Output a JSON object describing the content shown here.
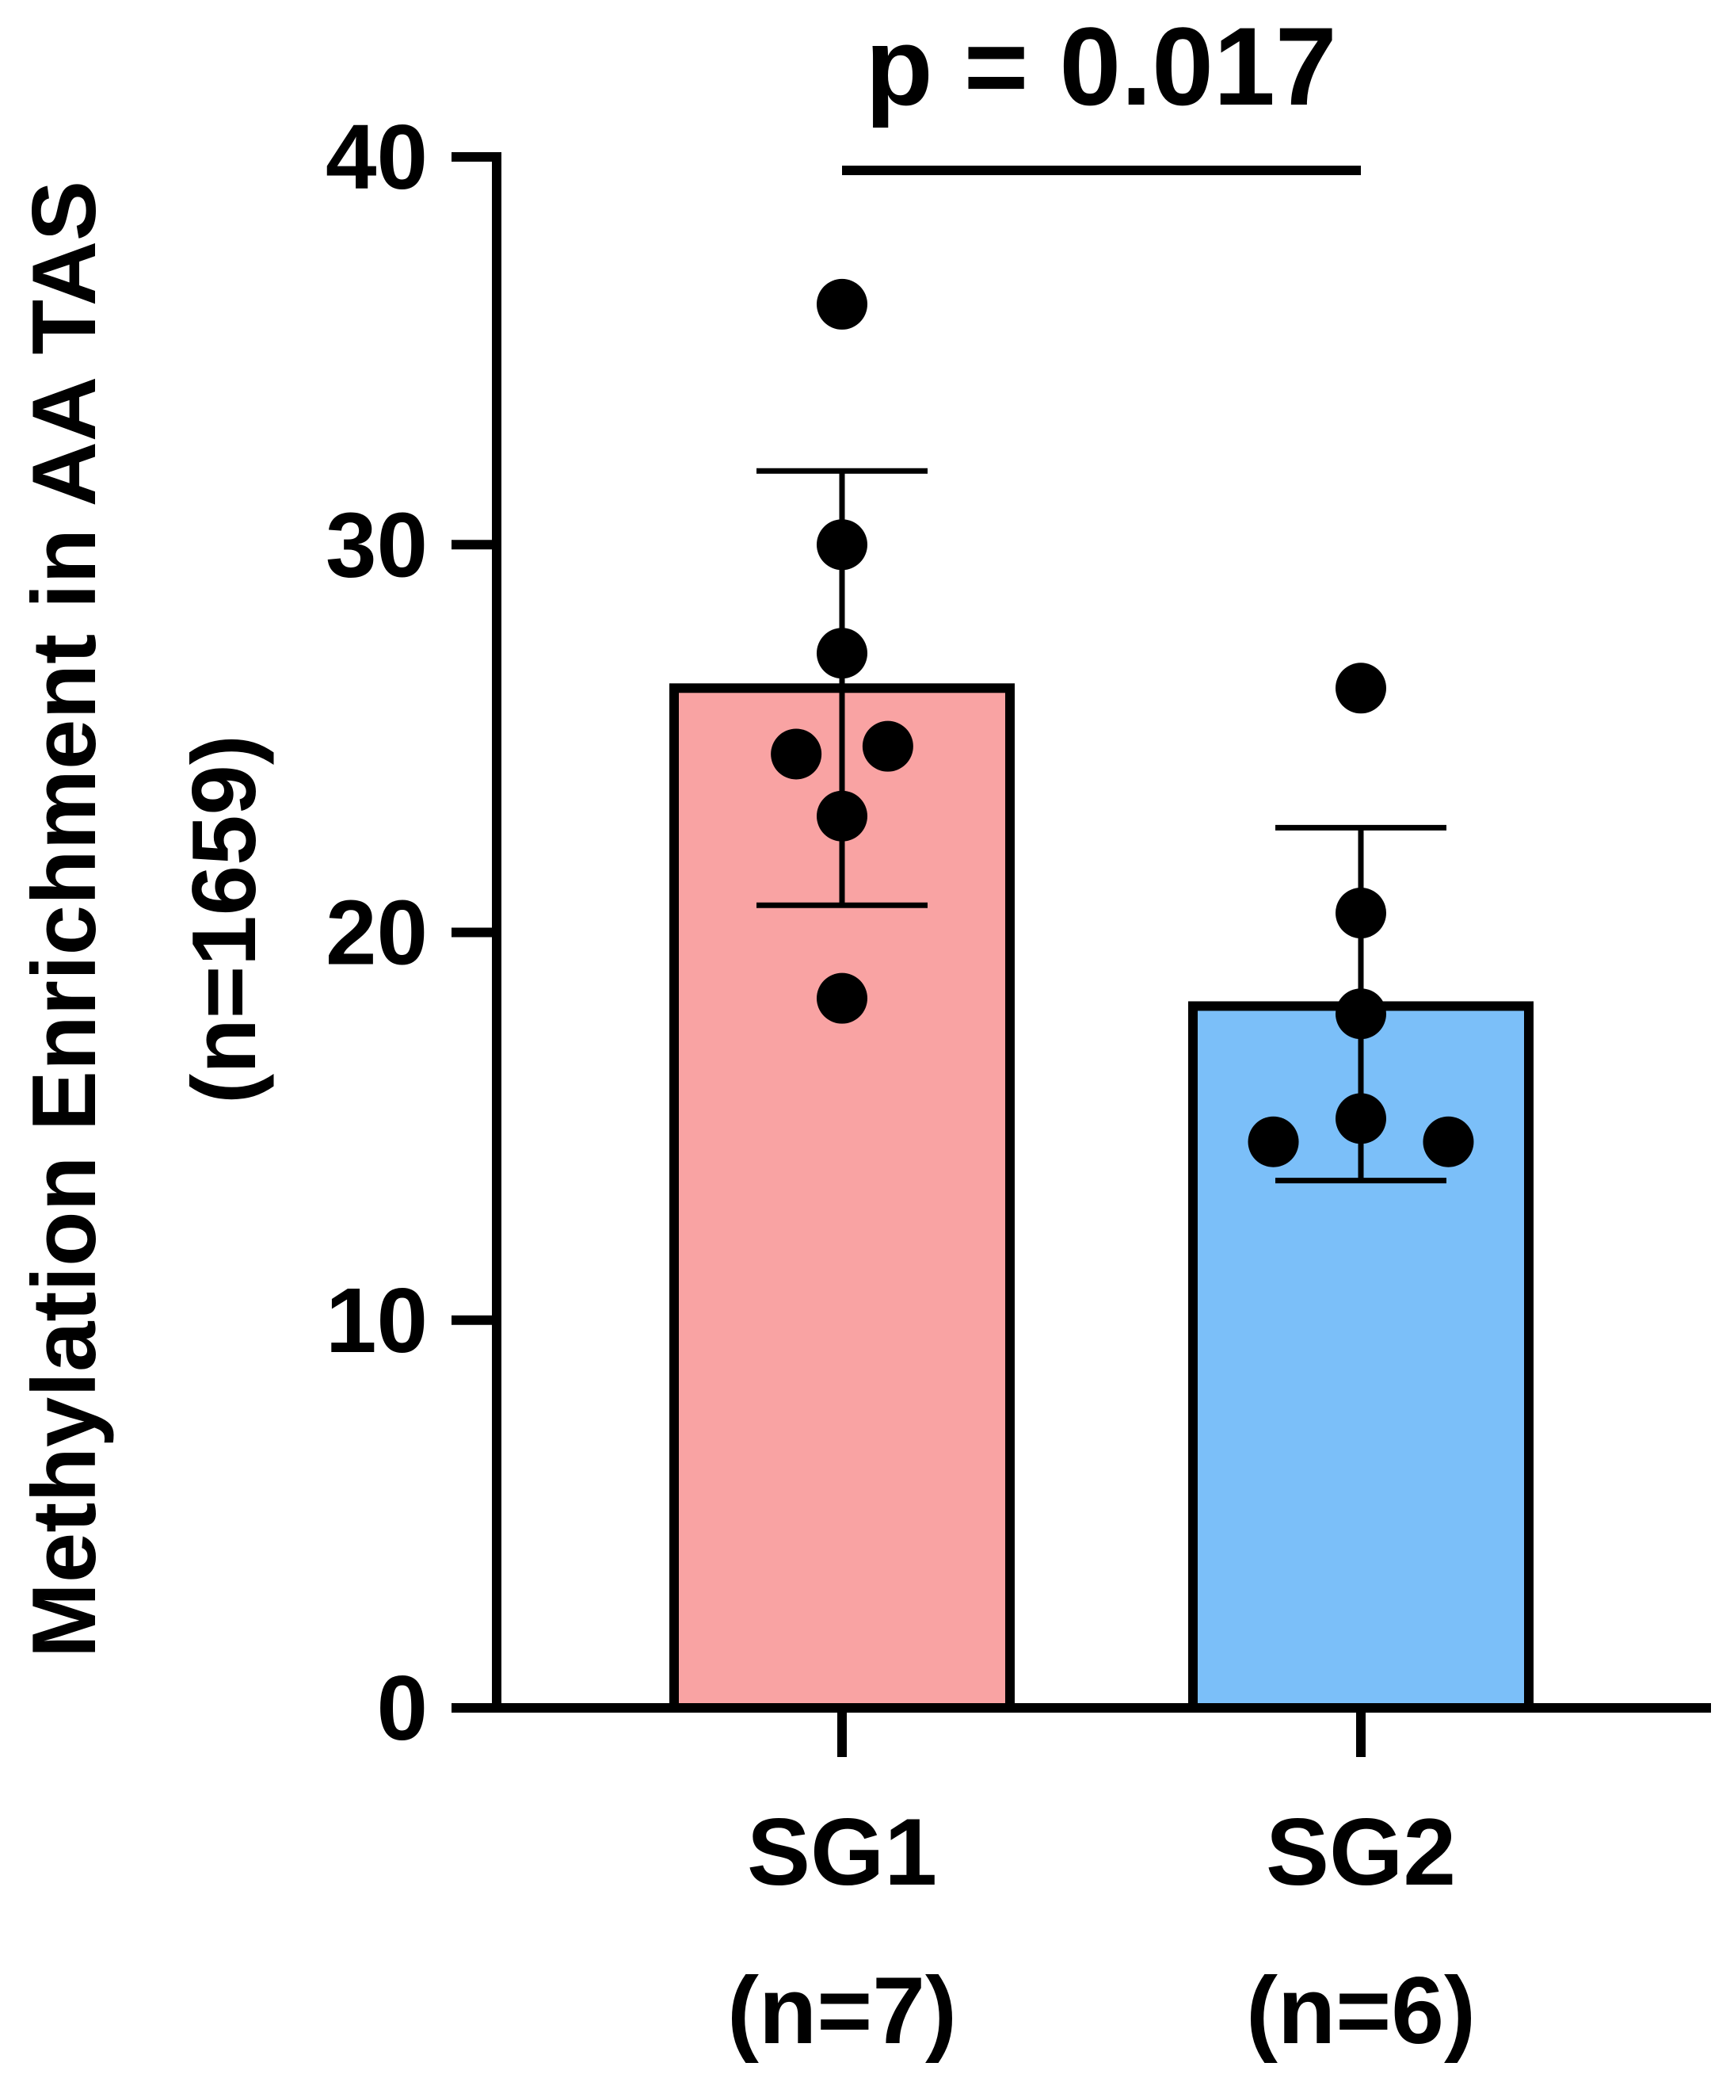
{
  "chart_data": {
    "type": "bar",
    "title": "",
    "xlabel": "",
    "ylabel": "Methylation Enrichment in AA TAS",
    "ylabel_line2": "(n=1659)",
    "ylim": [
      0,
      40
    ],
    "yticks": [
      0,
      10,
      20,
      30,
      40
    ],
    "categories": [
      {
        "name": "SG1",
        "n_label": "(n=7)"
      },
      {
        "name": "SG2",
        "n_label": "(n=6)"
      }
    ],
    "series": [
      {
        "name": "SG1",
        "color": "#F9A3A3",
        "mean": 26.3,
        "error_upper": 31.9,
        "error_lower": 20.7,
        "points": [
          {
            "x_offset": 0,
            "y": 36.2
          },
          {
            "x_offset": 0,
            "y": 30.0
          },
          {
            "x_offset": 0,
            "y": 27.2
          },
          {
            "x_offset": -0.22,
            "y": 24.6
          },
          {
            "x_offset": 0.22,
            "y": 24.8
          },
          {
            "x_offset": 0,
            "y": 23.0
          },
          {
            "x_offset": 0,
            "y": 18.3
          }
        ]
      },
      {
        "name": "SG2",
        "color": "#7BBFF9",
        "mean": 18.1,
        "error_upper": 22.7,
        "error_lower": 13.6,
        "points": [
          {
            "x_offset": 0,
            "y": 26.3
          },
          {
            "x_offset": 0,
            "y": 20.5
          },
          {
            "x_offset": 0,
            "y": 17.9
          },
          {
            "x_offset": 0,
            "y": 15.2
          },
          {
            "x_offset": -0.42,
            "y": 14.6
          },
          {
            "x_offset": 0.42,
            "y": 14.6
          }
        ]
      }
    ],
    "annotation": {
      "text": "p = 0.017",
      "between": [
        "SG1",
        "SG2"
      ]
    }
  }
}
